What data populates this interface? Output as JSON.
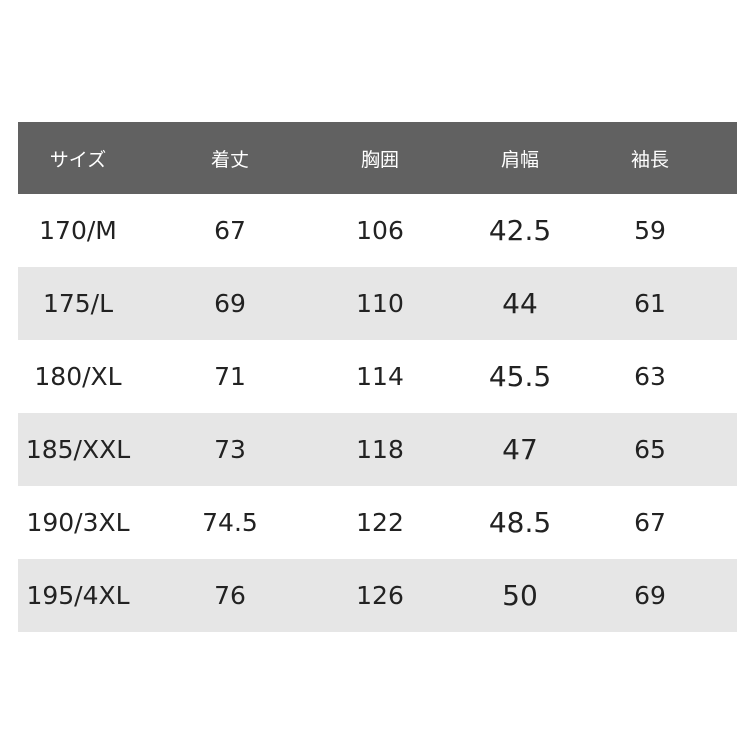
{
  "headers": [
    "サイズ",
    "着丈",
    "胸囲",
    "肩幅",
    "袖長"
  ],
  "rows": [
    [
      "170/M",
      "67",
      "106",
      "42.5",
      "59"
    ],
    [
      "175/L",
      "69",
      "110",
      "44",
      "61"
    ],
    [
      "180/XL",
      "71",
      "114",
      "45.5",
      "63"
    ],
    [
      "185/XXL",
      "73",
      "118",
      "47",
      "65"
    ],
    [
      "190/3XL",
      "74.5",
      "122",
      "48.5",
      "67"
    ],
    [
      "195/4XL",
      "76",
      "126",
      "50",
      "69"
    ]
  ],
  "colors": {
    "header_bg": "#616161",
    "alt_row_bg": "#e6e6e6"
  }
}
